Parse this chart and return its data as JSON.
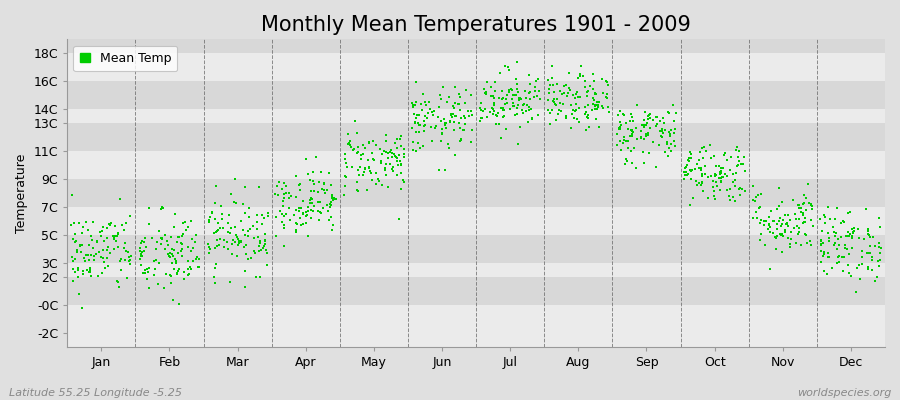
{
  "title": "Monthly Mean Temperatures 1901 - 2009",
  "ylabel": "Temperature",
  "xlabel_labels": [
    "Jan",
    "Feb",
    "Mar",
    "Apr",
    "May",
    "Jun",
    "Jul",
    "Aug",
    "Sep",
    "Oct",
    "Nov",
    "Dec"
  ],
  "ytick_labels": [
    "18C",
    "16C",
    "14C",
    "13C",
    "11C",
    "9C",
    "7C",
    "5C",
    "3C",
    "2C",
    "-0C",
    "-2C"
  ],
  "ytick_values": [
    18,
    16,
    14,
    13,
    11,
    9,
    7,
    5,
    3,
    2,
    0,
    -2
  ],
  "ylim": [
    -3,
    19
  ],
  "xlim": [
    0,
    12
  ],
  "dot_color": "#00cc00",
  "bg_color": "#e0e0e0",
  "stripe_colors": [
    "#ebebeb",
    "#d8d8d8"
  ],
  "grid_color": "#606060",
  "legend_label": "Mean Temp",
  "footer_left": "Latitude 55.25 Longitude -5.25",
  "footer_right": "worldspecies.org",
  "title_fontsize": 15,
  "axis_fontsize": 9,
  "label_fontsize": 9,
  "footer_fontsize": 8,
  "num_years": 109,
  "monthly_means": [
    3.8,
    3.5,
    5.1,
    7.4,
    10.3,
    13.1,
    14.7,
    14.5,
    12.3,
    9.5,
    6.0,
    4.3
  ],
  "monthly_stds": [
    1.5,
    1.6,
    1.4,
    1.2,
    1.2,
    1.2,
    1.1,
    1.0,
    1.1,
    1.1,
    1.2,
    1.3
  ],
  "seed": 42
}
